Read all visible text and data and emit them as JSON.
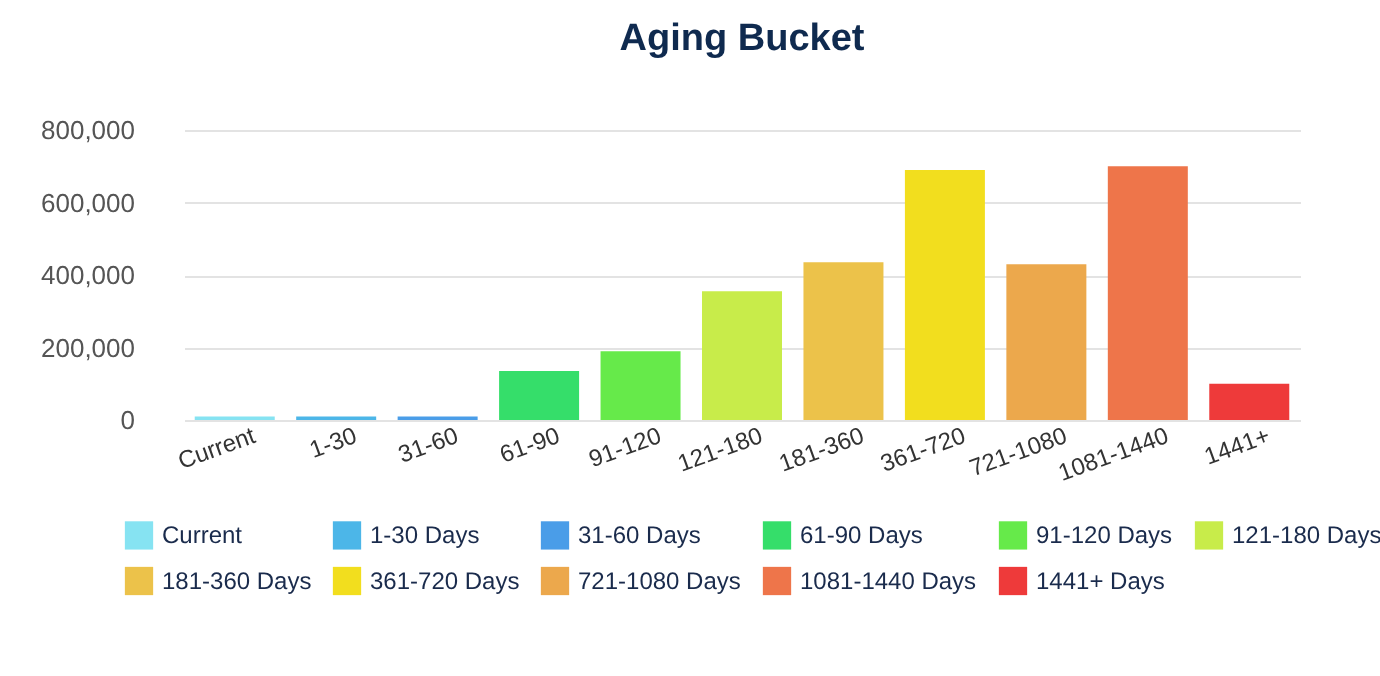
{
  "chart_data": {
    "type": "bar",
    "title": "Aging Bucket",
    "categories": [
      "Current",
      "1-30",
      "31-60",
      "61-90",
      "91-120",
      "121-180",
      "181-360",
      "361-720",
      "721-1080",
      "1081-1440",
      "1441+"
    ],
    "series": [
      {
        "name": "Current",
        "color": "#86e3f2",
        "values": [
          10000,
          null,
          null,
          null,
          null,
          null,
          null,
          null,
          null,
          null,
          null
        ]
      },
      {
        "name": "1-30 Days",
        "color": "#4cb6e8",
        "values": [
          null,
          10000,
          null,
          null,
          null,
          null,
          null,
          null,
          null,
          null,
          null
        ]
      },
      {
        "name": "31-60 Days",
        "color": "#4a9de8",
        "values": [
          null,
          null,
          10000,
          null,
          null,
          null,
          null,
          null,
          null,
          null,
          null
        ]
      },
      {
        "name": "61-90 Days",
        "color": "#35de6a",
        "values": [
          null,
          null,
          null,
          135000,
          null,
          null,
          null,
          null,
          null,
          null,
          null
        ]
      },
      {
        "name": "91-120 Days",
        "color": "#66ea4a",
        "values": [
          null,
          null,
          null,
          null,
          190000,
          null,
          null,
          null,
          null,
          null,
          null
        ]
      },
      {
        "name": "121-180 Days",
        "color": "#c8ec4a",
        "values": [
          null,
          null,
          null,
          null,
          null,
          355000,
          null,
          null,
          null,
          null,
          null
        ]
      },
      {
        "name": "181-360 Days",
        "color": "#ecc24a",
        "values": [
          null,
          null,
          null,
          null,
          null,
          null,
          435000,
          null,
          null,
          null,
          null
        ]
      },
      {
        "name": "361-720 Days",
        "color": "#f2de1e",
        "values": [
          null,
          null,
          null,
          null,
          null,
          null,
          null,
          690000,
          null,
          null,
          null
        ]
      },
      {
        "name": "721-1080 Days",
        "color": "#eca84c",
        "values": [
          null,
          null,
          null,
          null,
          null,
          null,
          null,
          null,
          430000,
          null,
          null
        ]
      },
      {
        "name": "1081-1440 Days",
        "color": "#ee754a",
        "values": [
          null,
          null,
          null,
          null,
          null,
          null,
          null,
          null,
          null,
          700000,
          null
        ]
      },
      {
        "name": "1441+ Days",
        "color": "#ee3a3a",
        "values": [
          null,
          null,
          null,
          null,
          null,
          null,
          null,
          null,
          null,
          null,
          100000
        ]
      }
    ],
    "ylim": [
      0,
      800000
    ],
    "yticks": [
      0,
      {
        "value": 200000,
        "label": "200,000"
      },
      {
        "value": 400000,
        "label": "400,000"
      },
      {
        "value": 600000,
        "label": "600,000"
      },
      {
        "value": 800000,
        "label": "800,000"
      }
    ],
    "grid": "y",
    "legend": "bottom"
  }
}
